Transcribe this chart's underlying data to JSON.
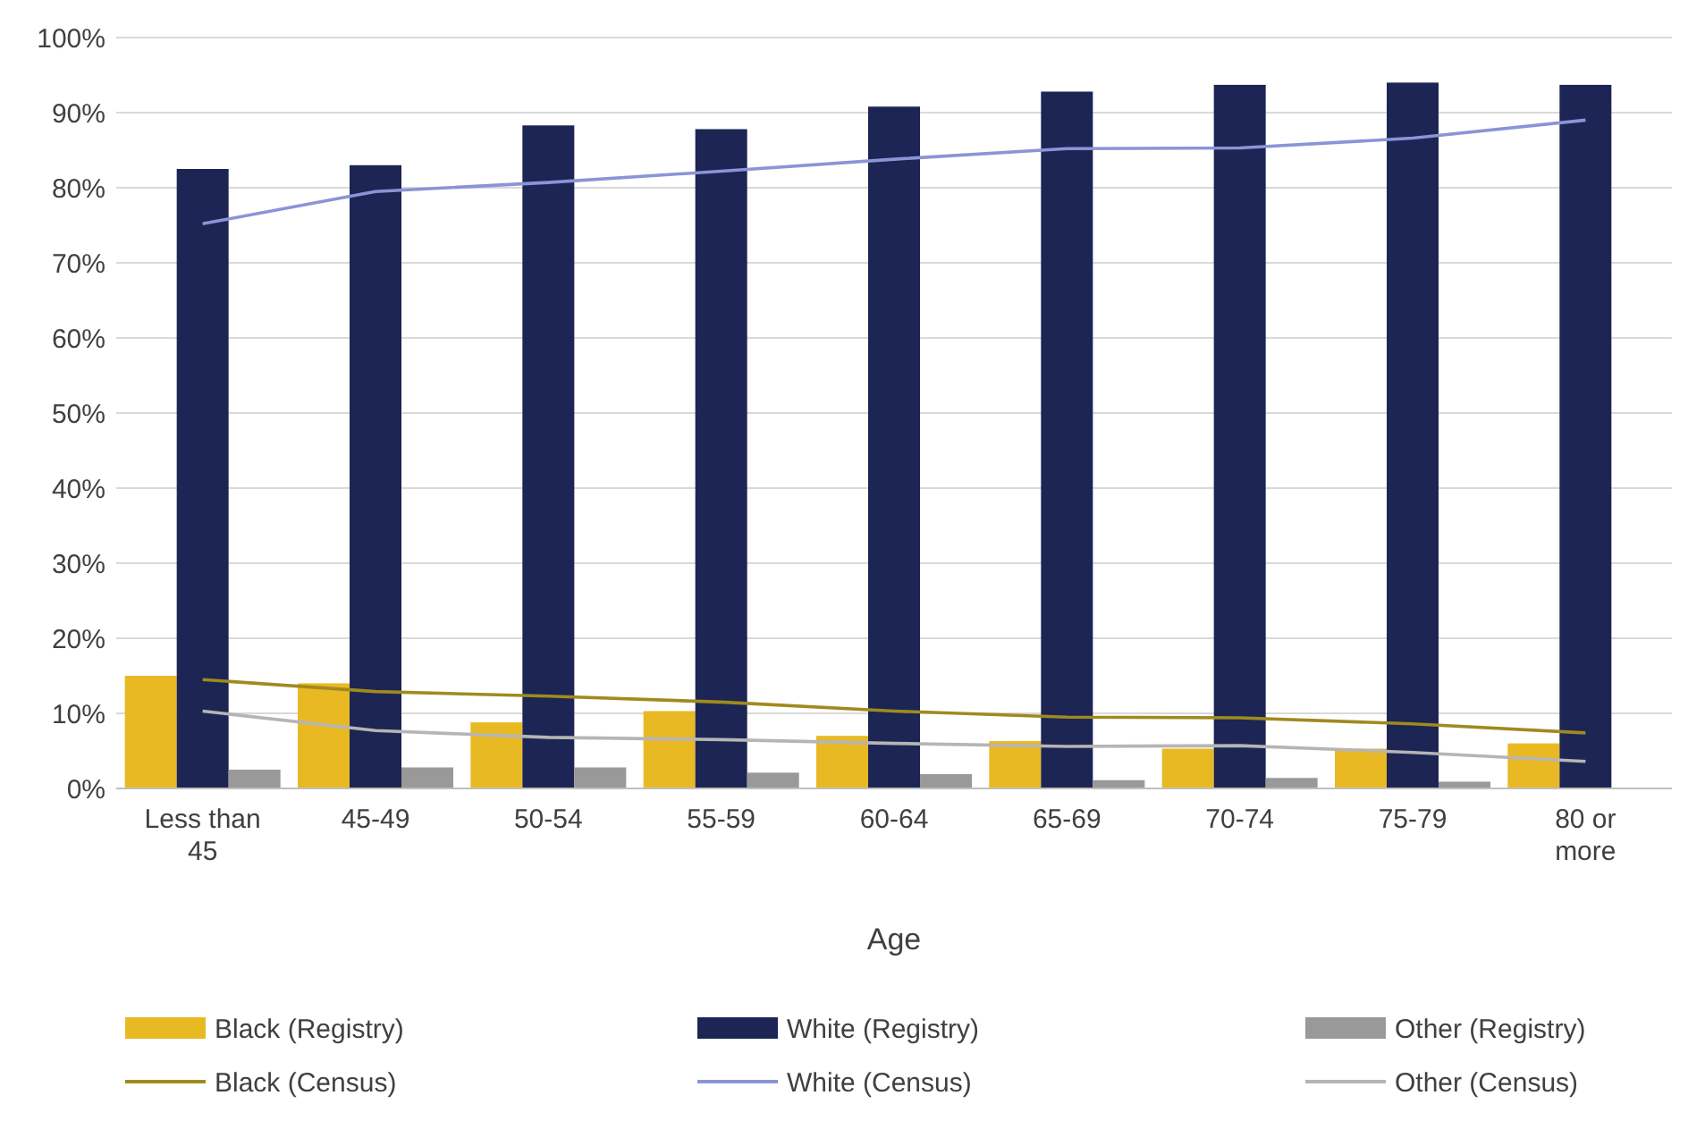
{
  "chart_data": {
    "type": "bar",
    "xlabel": "Age",
    "categories": [
      "Less than 45",
      "45-49",
      "50-54",
      "55-59",
      "60-64",
      "65-69",
      "70-74",
      "75-79",
      "80 or more"
    ],
    "ylim": [
      0,
      100
    ],
    "yticks": [
      {
        "value": 0,
        "label": "0%"
      },
      {
        "value": 10,
        "label": "10%"
      },
      {
        "value": 20,
        "label": "20%"
      },
      {
        "value": 30,
        "label": "30%"
      },
      {
        "value": 40,
        "label": "40%"
      },
      {
        "value": 50,
        "label": "50%"
      },
      {
        "value": 60,
        "label": "60%"
      },
      {
        "value": 70,
        "label": "70%"
      },
      {
        "value": 80,
        "label": "80%"
      },
      {
        "value": 90,
        "label": "90%"
      },
      {
        "value": 100,
        "label": "100%"
      }
    ],
    "grid": "y",
    "legend": "bottom",
    "series": [
      {
        "name": "Black (Registry)",
        "color": "#e8b923",
        "values": [
          15,
          14,
          8.8,
          10.3,
          7,
          6.3,
          5.3,
          5.3,
          6
        ]
      },
      {
        "name": "White (Registry)",
        "color": "#1c2553",
        "values": [
          82.5,
          83,
          88.3,
          87.8,
          90.8,
          92.8,
          93.7,
          94,
          93.7
        ]
      },
      {
        "name": "Other (Registry)",
        "color": "#999999",
        "values": [
          2.5,
          2.8,
          2.8,
          2.1,
          1.9,
          1.1,
          1.4,
          0.9,
          0
        ]
      },
      {
        "name": "Black (Census)",
        "type": "line",
        "color": "#a08a1e",
        "values": [
          14.5,
          12.9,
          12.3,
          11.5,
          10.3,
          9.5,
          9.4,
          8.6,
          7.4
        ]
      },
      {
        "name": "White (Census)",
        "type": "line",
        "color": "#8a94d6",
        "values": [
          75.2,
          79.5,
          80.7,
          82.2,
          83.8,
          85.2,
          85.3,
          86.6,
          89
        ]
      },
      {
        "name": "Other (Census)",
        "type": "line",
        "color": "#b5b5b5",
        "values": [
          10.3,
          7.7,
          6.8,
          6.5,
          6,
          5.6,
          5.7,
          4.8,
          3.6
        ]
      }
    ]
  }
}
